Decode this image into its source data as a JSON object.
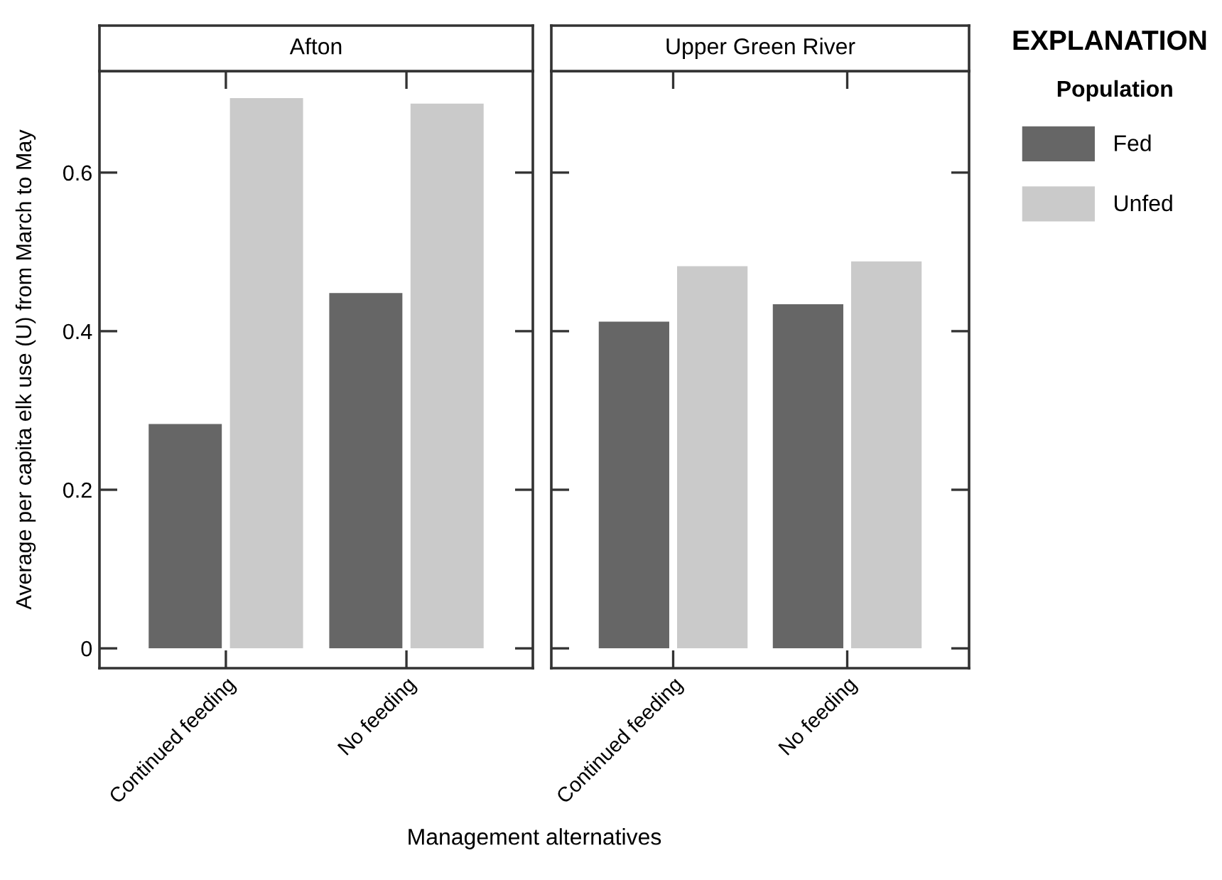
{
  "chart_data": [
    {
      "type": "bar",
      "title": "Afton",
      "categories": [
        "Continued feeding",
        "No feeding"
      ],
      "xlabel": "Management alternatives",
      "ylabel": "Average per capita elk use (U) from March to May",
      "series": [
        {
          "name": "Fed",
          "color": "#666666",
          "values": [
            0.283,
            0.448
          ]
        },
        {
          "name": "Unfed",
          "color": "#cacaca",
          "values": [
            0.694,
            0.687
          ]
        }
      ],
      "ylim": [
        -0.025,
        0.728
      ],
      "yticks": [
        0,
        0.2,
        0.4,
        0.6
      ],
      "grid": false,
      "legend": "right",
      "legend_title": "Population",
      "annotations": [
        "EXPLANATION"
      ]
    },
    {
      "type": "bar",
      "title": "Upper Green River",
      "categories": [
        "Continued feeding",
        "No feeding"
      ],
      "series": [
        {
          "color": "#666666",
          "values": [
            0.412,
            0.434
          ]
        },
        {
          "color": "#cacaca",
          "values": [
            0.482,
            0.488
          ]
        }
      ],
      "ylim": [
        -0.025,
        0.728
      ],
      "yticks": [
        0,
        0.2,
        0.4,
        0.6
      ],
      "grid": false,
      "tick_labels": "x"
    }
  ]
}
